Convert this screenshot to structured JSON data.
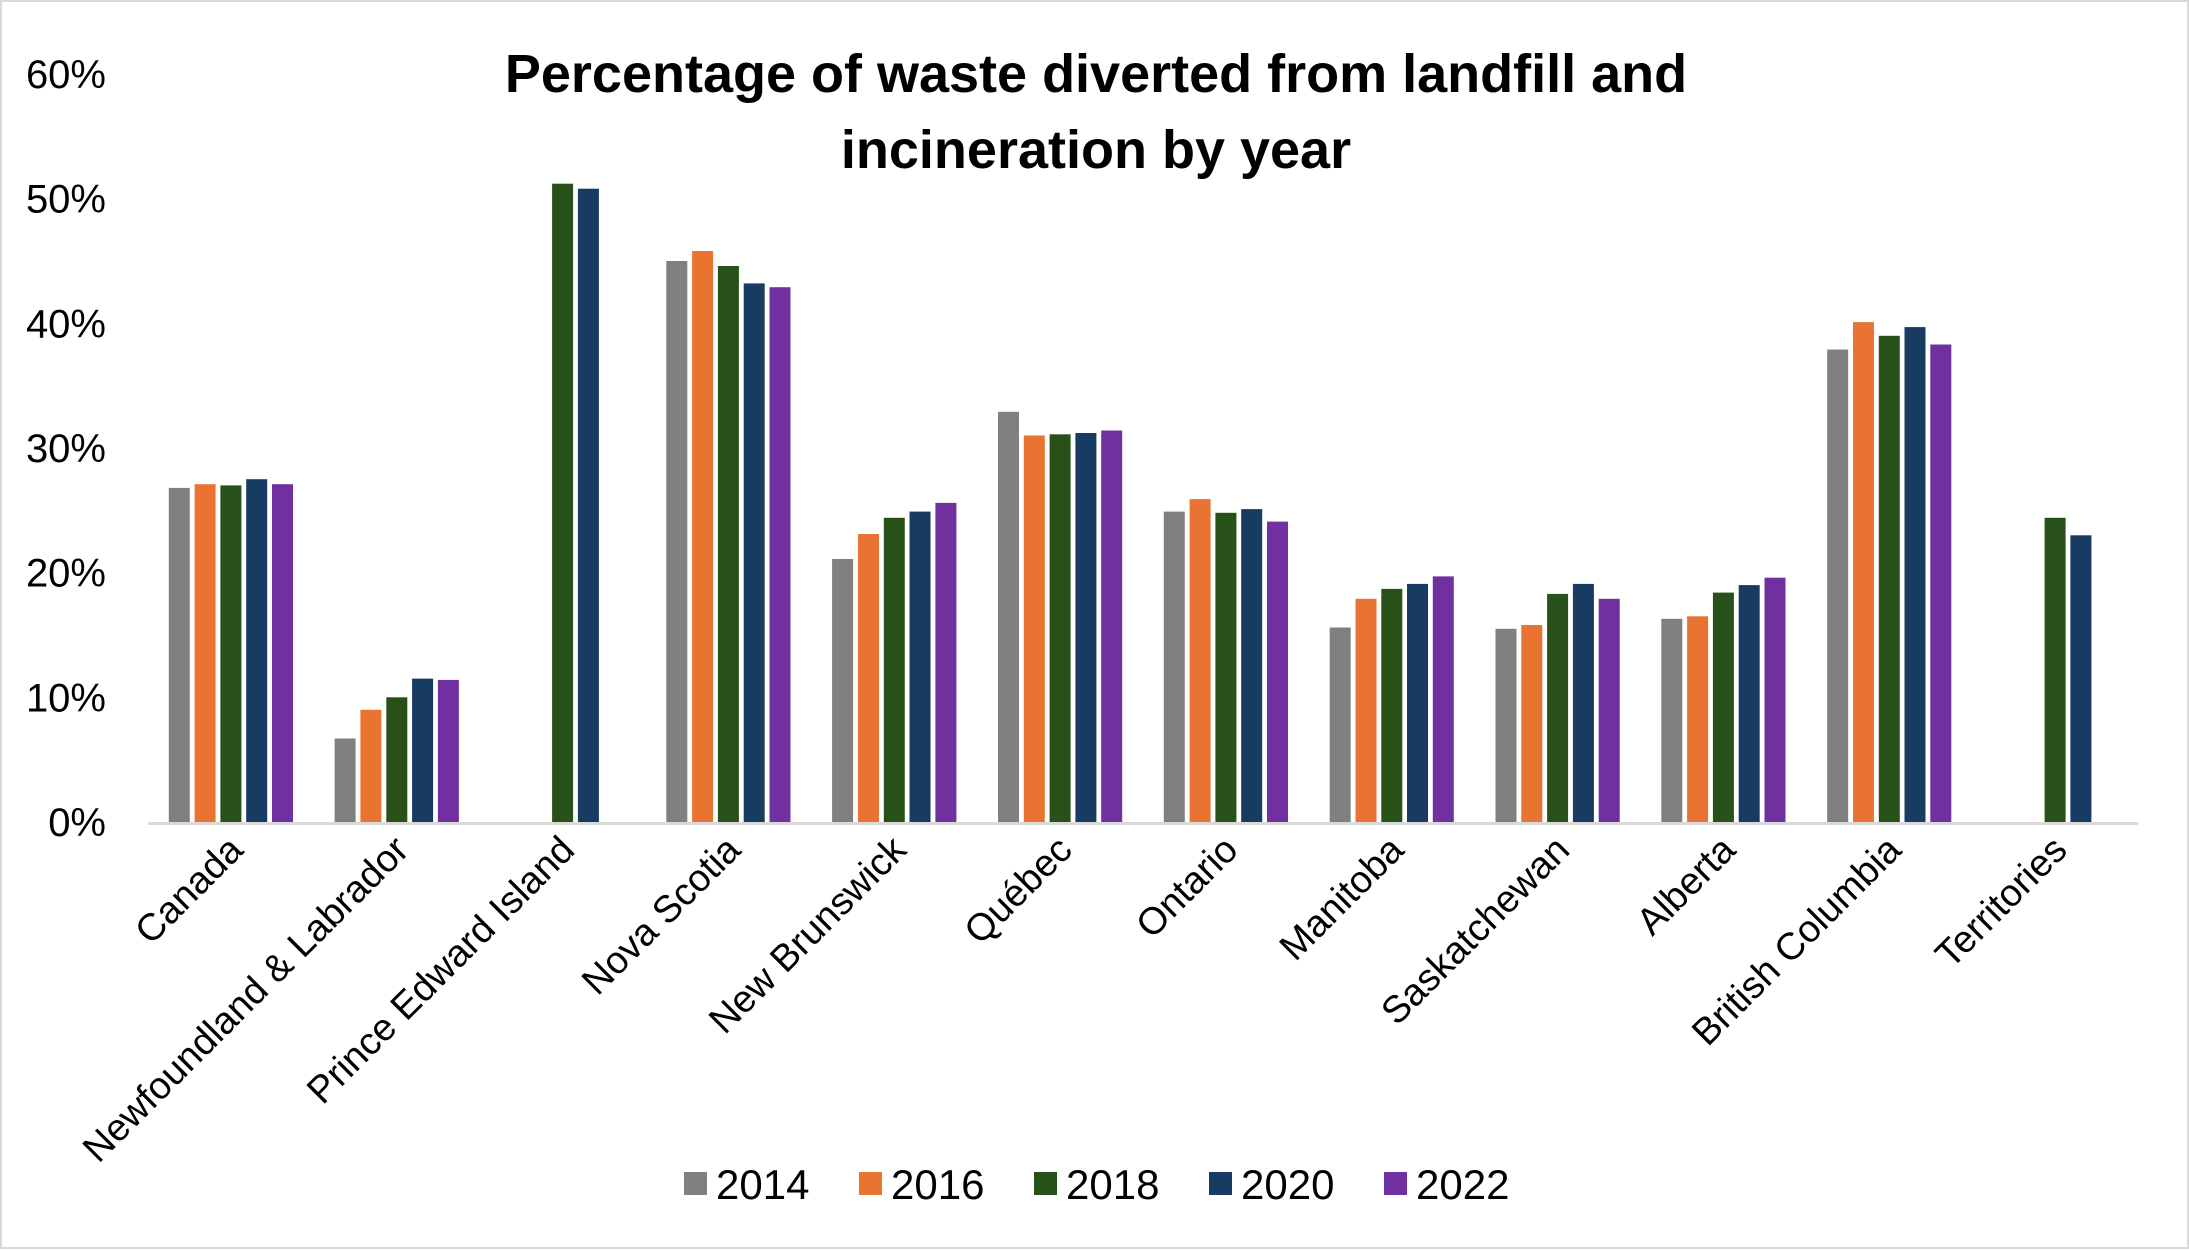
{
  "chart_data": {
    "type": "bar",
    "title": "Percentage of waste diverted from landfill and incineration by year",
    "title_lines": [
      "Percentage of waste diverted from landfill and",
      "incineration by year"
    ],
    "xlabel": "",
    "ylabel": "",
    "ylim": [
      0,
      60
    ],
    "yticks": [
      0,
      10,
      20,
      30,
      40,
      50,
      60
    ],
    "ytick_labels": [
      "0%",
      "10%",
      "20%",
      "30%",
      "40%",
      "50%",
      "60%"
    ],
    "grid": false,
    "legend_position": "bottom",
    "categories": [
      "Canada",
      "Newfoundland & Labrador",
      "Prince Edward Island",
      "Nova Scotia",
      "New Brunswick",
      "Québec",
      "Ontario",
      "Manitoba",
      "Saskatchewan",
      "Alberta",
      "British Columbia",
      "Territories"
    ],
    "series": [
      {
        "name": "2014",
        "color": "#808080",
        "values": [
          26.8,
          6.7,
          null,
          45.0,
          21.1,
          32.9,
          24.9,
          15.6,
          15.5,
          16.3,
          37.9,
          null
        ]
      },
      {
        "name": "2016",
        "color": "#e97431",
        "values": [
          27.1,
          9.0,
          null,
          45.8,
          23.1,
          31.0,
          25.9,
          17.9,
          15.8,
          16.5,
          40.1,
          null
        ]
      },
      {
        "name": "2018",
        "color": "#285119",
        "values": [
          27.0,
          10.0,
          51.2,
          44.6,
          24.4,
          31.1,
          24.8,
          18.7,
          18.3,
          18.4,
          39.0,
          24.4
        ]
      },
      {
        "name": "2020",
        "color": "#183b62",
        "values": [
          27.5,
          11.5,
          50.8,
          43.2,
          24.9,
          31.2,
          25.1,
          19.1,
          19.1,
          19.0,
          39.7,
          23.0
        ]
      },
      {
        "name": "2022",
        "color": "#7030a0",
        "values": [
          27.1,
          11.4,
          null,
          42.9,
          25.6,
          31.4,
          24.1,
          19.7,
          17.9,
          19.6,
          38.3,
          null
        ]
      }
    ]
  }
}
